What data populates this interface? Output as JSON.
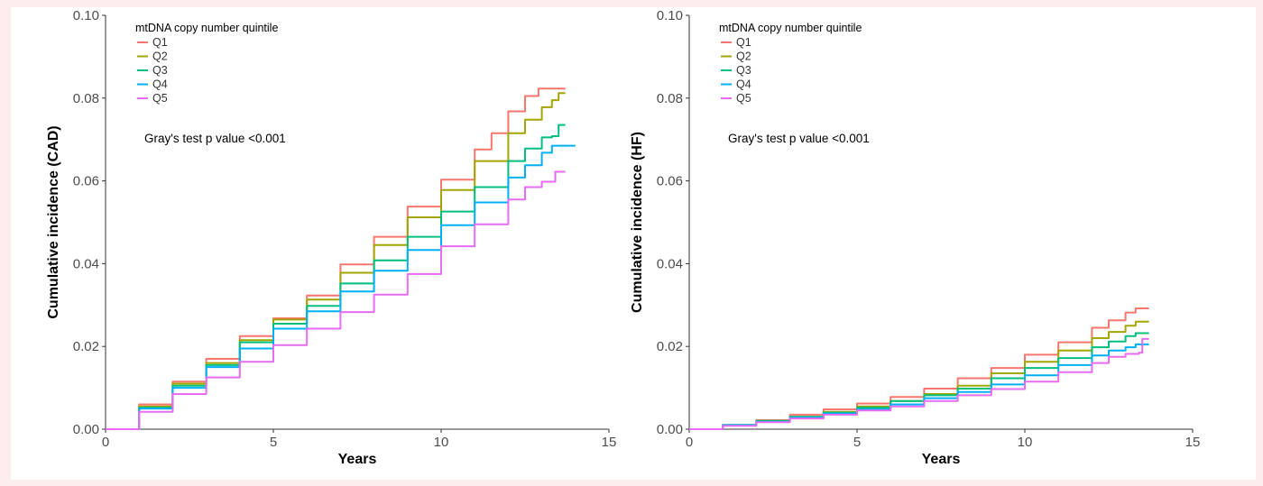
{
  "chart_data": [
    {
      "type": "line",
      "xlabel": "Years",
      "ylabel": "Cumulative incidence (CAD)",
      "xlim": [
        0,
        15
      ],
      "ylim": [
        0,
        0.1
      ],
      "xticks": [
        "0",
        "5",
        "10",
        "15"
      ],
      "yticks": [
        "0.00",
        "0.02",
        "0.04",
        "0.06",
        "0.08",
        "0.10"
      ],
      "grid": false,
      "legend_title": "mtDNA copy number quintile",
      "legend_position": "top-left",
      "annotation": "Gray's test p value <0.001",
      "series": [
        {
          "name": "Q1",
          "color": "#f8766d",
          "x": [
            0,
            1,
            2,
            3,
            4,
            5,
            6,
            7,
            8,
            9,
            10,
            11,
            11.5,
            12,
            12.5,
            12.9,
            13.2,
            13.4,
            13.7
          ],
          "y": [
            0,
            0.006,
            0.0115,
            0.017,
            0.0225,
            0.0268,
            0.0323,
            0.0398,
            0.0465,
            0.0538,
            0.0603,
            0.0676,
            0.0715,
            0.0768,
            0.0805,
            0.0823,
            0.0823,
            0.0823,
            0.0823
          ]
        },
        {
          "name": "Q2",
          "color": "#a3a500",
          "x": [
            0,
            1,
            2,
            3,
            4,
            5,
            6,
            7,
            8,
            9,
            10,
            11,
            12,
            12.5,
            13,
            13.3,
            13.5,
            13.7
          ],
          "y": [
            0,
            0.0055,
            0.011,
            0.016,
            0.0215,
            0.0265,
            0.0313,
            0.0378,
            0.0445,
            0.0512,
            0.0578,
            0.0648,
            0.0715,
            0.0748,
            0.0778,
            0.0795,
            0.0812,
            0.0812
          ]
        },
        {
          "name": "Q3",
          "color": "#00bf7d",
          "x": [
            0,
            1,
            2,
            3,
            4,
            5,
            6,
            7,
            8,
            9,
            10,
            11,
            12,
            12.5,
            13,
            13.3,
            13.5,
            13.7
          ],
          "y": [
            0,
            0.0052,
            0.0105,
            0.0155,
            0.021,
            0.0255,
            0.0298,
            0.0352,
            0.0408,
            0.0465,
            0.0526,
            0.0585,
            0.0648,
            0.0678,
            0.0705,
            0.0708,
            0.0735,
            0.0735
          ]
        },
        {
          "name": "Q4",
          "color": "#00b0f6",
          "x": [
            0,
            1,
            2,
            3,
            4,
            5,
            6,
            7,
            8,
            9,
            10,
            11,
            12,
            12.5,
            13,
            13.3,
            14
          ],
          "y": [
            0,
            0.005,
            0.01,
            0.015,
            0.0195,
            0.0243,
            0.0285,
            0.0333,
            0.0383,
            0.0433,
            0.0493,
            0.0548,
            0.0608,
            0.0638,
            0.0668,
            0.0685,
            0.0685
          ]
        },
        {
          "name": "Q5",
          "color": "#e76bf3",
          "x": [
            0,
            1,
            2,
            3,
            4,
            5,
            6,
            7,
            8,
            9,
            10,
            11,
            12,
            12.5,
            13,
            13.3,
            13.4,
            13.7
          ],
          "y": [
            0,
            0.0042,
            0.0085,
            0.0125,
            0.0163,
            0.0203,
            0.0243,
            0.0283,
            0.0325,
            0.0375,
            0.0442,
            0.0495,
            0.0555,
            0.0585,
            0.0598,
            0.0598,
            0.0622,
            0.0622
          ]
        }
      ]
    },
    {
      "type": "line",
      "xlabel": "Years",
      "ylabel": "Cumulative incidence (HF)",
      "xlim": [
        0,
        15
      ],
      "ylim": [
        0,
        0.1
      ],
      "xticks": [
        "0",
        "5",
        "10",
        "15"
      ],
      "yticks": [
        "0.00",
        "0.02",
        "0.04",
        "0.06",
        "0.08",
        "0.10"
      ],
      "grid": false,
      "legend_title": "mtDNA copy number quintile",
      "legend_position": "top-left",
      "annotation": "Gray's test p value <0.001",
      "series": [
        {
          "name": "Q1",
          "color": "#f8766d",
          "x": [
            0,
            1,
            2,
            3,
            4,
            5,
            6,
            7,
            8,
            9,
            10,
            11,
            12,
            12.5,
            13,
            13.3,
            13.7
          ],
          "y": [
            0,
            0.001,
            0.0022,
            0.0035,
            0.0048,
            0.0062,
            0.0078,
            0.0098,
            0.0123,
            0.0148,
            0.018,
            0.021,
            0.0245,
            0.0263,
            0.0282,
            0.0292,
            0.0292
          ]
        },
        {
          "name": "Q2",
          "color": "#a3a500",
          "x": [
            0,
            1,
            2,
            3,
            4,
            5,
            6,
            7,
            8,
            9,
            10,
            11,
            12,
            12.5,
            13,
            13.3,
            13.7
          ],
          "y": [
            0,
            0.001,
            0.002,
            0.003,
            0.0042,
            0.0055,
            0.0068,
            0.0085,
            0.0105,
            0.0135,
            0.0163,
            0.019,
            0.022,
            0.0235,
            0.025,
            0.026,
            0.026
          ]
        },
        {
          "name": "Q3",
          "color": "#00bf7d",
          "x": [
            0,
            1,
            2,
            3,
            4,
            5,
            6,
            7,
            8,
            9,
            10,
            11,
            12,
            12.5,
            13,
            13.3,
            13.7
          ],
          "y": [
            0,
            0.001,
            0.002,
            0.003,
            0.004,
            0.0052,
            0.0068,
            0.0082,
            0.0098,
            0.0123,
            0.0148,
            0.0172,
            0.0198,
            0.0212,
            0.0225,
            0.0232,
            0.0232
          ]
        },
        {
          "name": "Q4",
          "color": "#00b0f6",
          "x": [
            0,
            1,
            2,
            3,
            4,
            5,
            6,
            7,
            8,
            9,
            10,
            11,
            12,
            12.5,
            13,
            13.3,
            13.7
          ],
          "y": [
            0,
            0.001,
            0.0018,
            0.0028,
            0.0038,
            0.0048,
            0.006,
            0.0075,
            0.009,
            0.0108,
            0.013,
            0.0155,
            0.0178,
            0.019,
            0.0198,
            0.0205,
            0.0205
          ]
        },
        {
          "name": "Q5",
          "color": "#e76bf3",
          "x": [
            0,
            1,
            2,
            3,
            4,
            5,
            6,
            7,
            8,
            9,
            10,
            11,
            12,
            12.5,
            13,
            13.4,
            13.5,
            13.7
          ],
          "y": [
            0,
            0.0008,
            0.0017,
            0.0026,
            0.0035,
            0.0045,
            0.0055,
            0.0068,
            0.0082,
            0.0097,
            0.0115,
            0.0138,
            0.016,
            0.0175,
            0.0182,
            0.0185,
            0.0218,
            0.0218
          ]
        }
      ]
    }
  ]
}
